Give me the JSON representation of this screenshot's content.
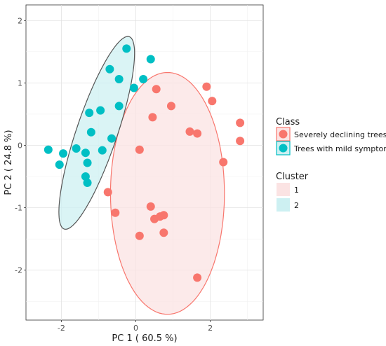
{
  "chart_data": {
    "type": "scatter",
    "xlabel": "PC 1 ( 60.5 %)",
    "ylabel": "PC 2 ( 24.8 %)",
    "xlim": [
      -2.95,
      3.42
    ],
    "ylim": [
      -2.8,
      2.25
    ],
    "x_ticks": [
      -2,
      0,
      2
    ],
    "y_ticks": [
      2,
      1,
      0,
      -1,
      -2
    ],
    "grid": true,
    "legend_position": "right",
    "class_legend": {
      "title": "Class",
      "entries": [
        "Severely declining trees",
        "Trees with mild symptoms"
      ]
    },
    "cluster_legend": {
      "title": "Cluster",
      "entries": [
        "1",
        "2"
      ]
    },
    "colors": {
      "class_1": "#F8766D",
      "class_2": "#00BFC4",
      "cluster_1_fill": "#FBE3E3",
      "cluster_2_fill": "#CDF0F2",
      "cluster_1_stroke": "#F8766D",
      "cluster_2_stroke": "#555555"
    },
    "series": [
      {
        "name": "Severely declining trees",
        "points": [
          [
            0.55,
            0.9
          ],
          [
            0.95,
            0.63
          ],
          [
            0.45,
            0.45
          ],
          [
            1.9,
            0.94
          ],
          [
            2.05,
            0.71
          ],
          [
            1.45,
            0.22
          ],
          [
            1.65,
            0.19
          ],
          [
            2.8,
            0.36
          ],
          [
            2.8,
            0.07
          ],
          [
            2.35,
            -0.27
          ],
          [
            0.1,
            -0.07
          ],
          [
            -0.75,
            -0.75
          ],
          [
            -0.55,
            -1.08
          ],
          [
            0.4,
            -0.98
          ],
          [
            0.5,
            -1.18
          ],
          [
            0.65,
            -1.14
          ],
          [
            0.75,
            -1.12
          ],
          [
            0.75,
            -1.4
          ],
          [
            0.1,
            -1.45
          ],
          [
            1.65,
            -2.12
          ]
        ]
      },
      {
        "name": "Trees with mild symptoms",
        "points": [
          [
            -0.25,
            1.55
          ],
          [
            0.4,
            1.38
          ],
          [
            -0.7,
            1.22
          ],
          [
            -0.45,
            1.06
          ],
          [
            0.2,
            1.06
          ],
          [
            -0.05,
            0.92
          ],
          [
            -0.45,
            0.63
          ],
          [
            -0.95,
            0.56
          ],
          [
            -1.25,
            0.52
          ],
          [
            -1.2,
            0.21
          ],
          [
            -0.65,
            0.11
          ],
          [
            -0.9,
            -0.08
          ],
          [
            -2.35,
            -0.07
          ],
          [
            -1.95,
            -0.13
          ],
          [
            -1.35,
            -0.12
          ],
          [
            -1.6,
            -0.05
          ],
          [
            -2.05,
            -0.31
          ],
          [
            -1.3,
            -0.28
          ],
          [
            -1.35,
            -0.5
          ],
          [
            -1.3,
            -0.6
          ]
        ]
      }
    ],
    "clusters": [
      {
        "name": "1",
        "center": [
          0.85,
          -0.77
        ],
        "axis_major": [
          0.3,
          1.9
        ],
        "axis_minor": [
          1.5,
          -0.38
        ]
      },
      {
        "name": "2",
        "center": [
          -1.05,
          0.2
        ],
        "axis_major": [
          0.95,
          1.5
        ],
        "axis_minor": [
          0.36,
          -0.37
        ]
      }
    ]
  }
}
